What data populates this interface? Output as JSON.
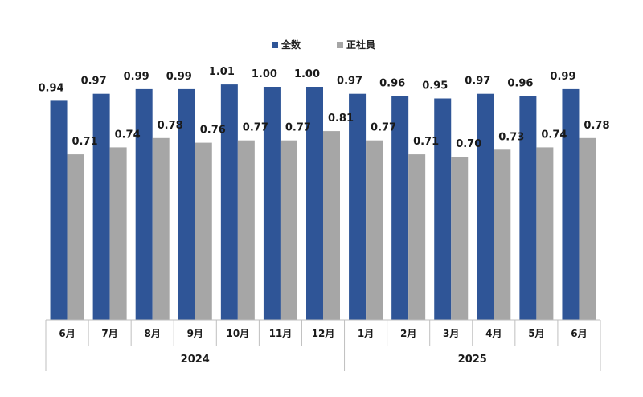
{
  "chart_data": {
    "type": "bar",
    "title": "",
    "xlabel": "",
    "ylabel": "",
    "ylim": [
      0,
      1.1
    ],
    "grid": false,
    "legend_position": "top-center",
    "categories": [
      "6月",
      "7月",
      "8月",
      "9月",
      "10月",
      "11月",
      "12月",
      "1月",
      "2月",
      "3月",
      "4月",
      "5月",
      "6月"
    ],
    "year_groups": [
      {
        "label": "2024",
        "start": 0,
        "end": 6
      },
      {
        "label": "2025",
        "start": 7,
        "end": 12
      }
    ],
    "series": [
      {
        "name": "全数",
        "color": "#2F5597",
        "values": [
          0.94,
          0.97,
          0.99,
          0.99,
          1.01,
          1.0,
          1.0,
          0.97,
          0.96,
          0.95,
          0.97,
          0.96,
          0.99
        ],
        "labels": [
          "0.94",
          "0.97",
          "0.99",
          "0.99",
          "1.01",
          "1.00",
          "1.00",
          "0.97",
          "0.96",
          "0.95",
          "0.97",
          "0.96",
          "0.99"
        ]
      },
      {
        "name": "正社員",
        "color": "#A6A6A6",
        "values": [
          0.71,
          0.74,
          0.78,
          0.76,
          0.77,
          0.77,
          0.81,
          0.77,
          0.71,
          0.7,
          0.73,
          0.74,
          0.78
        ],
        "labels": [
          "0.71",
          "0.74",
          "0.78",
          "0.76",
          "0.77",
          "0.77",
          "0.81",
          "0.77",
          "0.71",
          "0.70",
          "0.73",
          "0.74",
          "0.78"
        ]
      }
    ],
    "axis_color": "#BFBFBF"
  }
}
